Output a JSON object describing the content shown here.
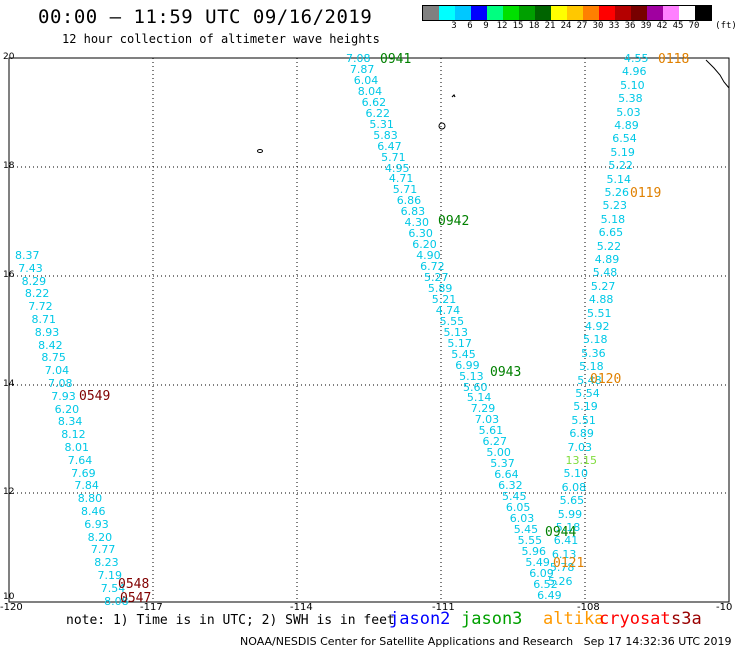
{
  "header": {
    "title": "00:00 – 11:59 UTC 09/16/2019",
    "subtitle": "12 hour collection of altimeter wave heights"
  },
  "scale": {
    "unit": "(ft)",
    "bins": [
      {
        "color": "#808080",
        "label": ""
      },
      {
        "color": "#00ffff",
        "label": "3"
      },
      {
        "color": "#00c8ff",
        "label": "6"
      },
      {
        "color": "#0000ff",
        "label": "9"
      },
      {
        "color": "#00ff80",
        "label": "12"
      },
      {
        "color": "#00e000",
        "label": "15"
      },
      {
        "color": "#00a000",
        "label": "18"
      },
      {
        "color": "#006400",
        "label": "21"
      },
      {
        "color": "#ffff00",
        "label": "24"
      },
      {
        "color": "#ffc800",
        "label": "27"
      },
      {
        "color": "#ff8000",
        "label": "30"
      },
      {
        "color": "#ff0000",
        "label": "33"
      },
      {
        "color": "#b40000",
        "label": "36"
      },
      {
        "color": "#780000",
        "label": "39"
      },
      {
        "color": "#a000a0",
        "label": "42"
      },
      {
        "color": "#ff80ff",
        "label": "45"
      },
      {
        "color": "#ffffff",
        "label": "70"
      },
      {
        "color": "#000000",
        "label": ""
      }
    ]
  },
  "axes": {
    "lon_ticks": [
      "-120",
      "-117",
      "-114",
      "-111",
      "-108",
      "-10"
    ],
    "lat_ticks": [
      "20",
      "18",
      "16",
      "14",
      "12",
      "10"
    ]
  },
  "passes": [
    {
      "label": "0941",
      "color": "#008000"
    },
    {
      "label": "0942",
      "color": "#008000"
    },
    {
      "label": "0943",
      "color": "#008000"
    },
    {
      "label": "0944",
      "color": "#008000"
    },
    {
      "label": "0118",
      "color": "#e08000"
    },
    {
      "label": "0119",
      "color": "#e08000"
    },
    {
      "label": "0120",
      "color": "#e08000"
    },
    {
      "label": "0121",
      "color": "#e08000"
    },
    {
      "label": "0549",
      "color": "#800000"
    },
    {
      "label": "0548",
      "color": "#800000"
    },
    {
      "label": "0547",
      "color": "#800000"
    }
  ],
  "tracks": {
    "track_941": [
      "7.08",
      "7.87",
      "6.04",
      "8.04",
      "6.62",
      "6.22",
      "5.31",
      "5.83",
      "6.47",
      "5.71",
      "4.95",
      "4.71",
      "5.71",
      "6.86",
      "6.83",
      "4.30",
      "6.30",
      "6.20",
      "4.90",
      "6.72",
      "5.27",
      "5.89",
      "5.21",
      "4.74",
      "5.55",
      "5.13",
      "5.17",
      "5.45",
      "6.99",
      "5.13",
      "5.60",
      "5.14",
      "7.29",
      "7.03",
      "5.61",
      "6.27",
      "5.00",
      "5.37",
      "6.64",
      "6.32",
      "5.45",
      "6.05",
      "6.03",
      "5.45",
      "5.55",
      "5.96",
      "5.49",
      "6.09",
      "6.52",
      "6.49"
    ],
    "track_118": [
      "4.55",
      "4.96",
      "5.10",
      "5.38",
      "5.03",
      "4.89",
      "6.54",
      "5.19",
      "5.22",
      "5.14",
      "5.26",
      "5.23",
      "5.18",
      "6.65",
      "5.22",
      "4.89",
      "5.48",
      "5.27",
      "4.88",
      "5.51",
      "4.92",
      "5.18",
      "5.36",
      "5.18",
      "5.48",
      "5.54",
      "5.19",
      "5.51",
      "6.89",
      "7.03",
      "13.15",
      "5.10",
      "6.08",
      "5.65",
      "5.99",
      "5.18",
      "6.41",
      "6.13",
      "5.78",
      "5.26"
    ],
    "track_549": [
      "8.37",
      "7.43",
      "8.29",
      "8.22",
      "7.72",
      "8.71",
      "8.93",
      "8.42",
      "8.75",
      "7.04",
      "7.08",
      "7.93",
      "6.20",
      "8.34",
      "8.12",
      "8.01",
      "7.64",
      "7.69",
      "7.84",
      "8.80",
      "8.46",
      "6.93",
      "8.20",
      "7.77",
      "8.23",
      "7.19",
      "7.54",
      "8.08"
    ]
  },
  "legend": {
    "note": "note: 1) Time is in UTC; 2) SWH is in feet",
    "satellites": [
      {
        "name": "jason2",
        "color": "#0000ff"
      },
      {
        "name": "jason3",
        "color": "#00a000"
      },
      {
        "name": "altika",
        "color": "#ff9900"
      },
      {
        "name": "cryosat",
        "color": "#ff0000"
      },
      {
        "name": "s3a",
        "color": "#990000"
      }
    ]
  },
  "footer": {
    "credit": "NOAA/NESDIS Center for Satellite Applications and Research   Sep 17 14:32:36 UTC 2019"
  }
}
